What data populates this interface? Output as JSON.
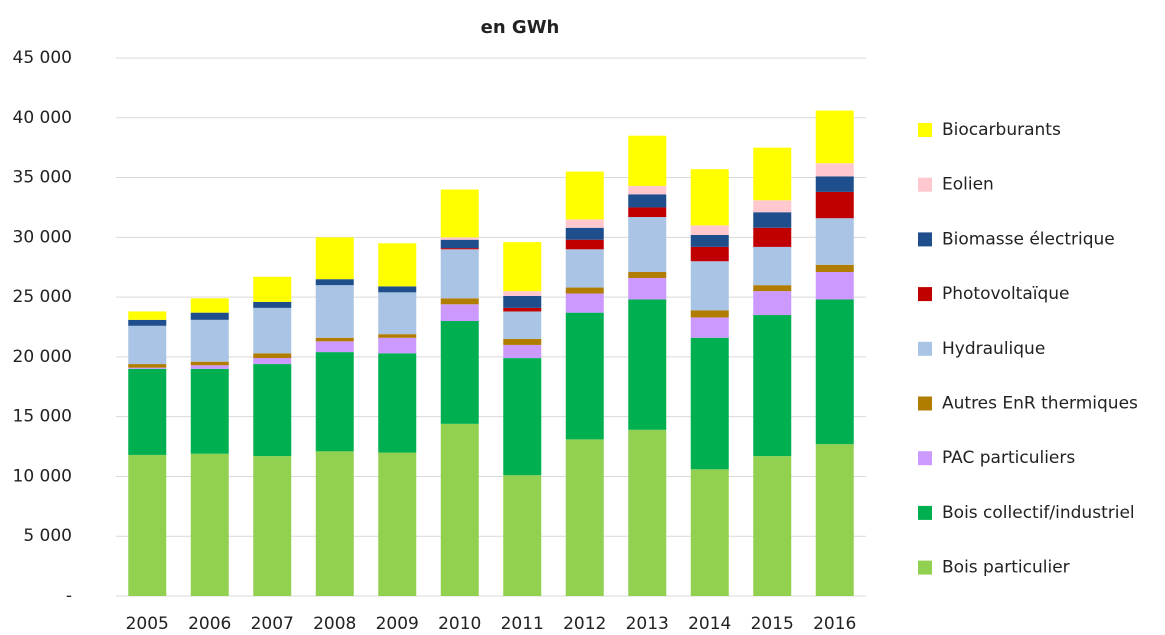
{
  "chart_data": {
    "type": "stacked_bar",
    "title": "en GWh",
    "categories": [
      "2005",
      "2006",
      "2007",
      "2008",
      "2009",
      "2010",
      "2011",
      "2012",
      "2013",
      "2014",
      "2015",
      "2016"
    ],
    "series": [
      {
        "name": "Bois particulier",
        "color": "#92d050",
        "values": [
          11800,
          11900,
          11700,
          12100,
          12000,
          14400,
          10100,
          13100,
          13900,
          10600,
          11700,
          12700
        ]
      },
      {
        "name": "Bois collectif/industriel",
        "color": "#00b050",
        "values": [
          7200,
          7100,
          7700,
          8300,
          8300,
          8600,
          9800,
          10600,
          10900,
          11000,
          11800,
          12100
        ]
      },
      {
        "name": "PAC particuliers",
        "color": "#cc99ff",
        "values": [
          100,
          300,
          500,
          900,
          1300,
          1400,
          1100,
          1600,
          1800,
          1700,
          2000,
          2300
        ]
      },
      {
        "name": "Autres EnR thermiques",
        "color": "#b07d00",
        "values": [
          300,
          300,
          400,
          300,
          300,
          500,
          500,
          500,
          500,
          600,
          500,
          600
        ]
      },
      {
        "name": "Hydraulique",
        "color": "#a9c4e4",
        "values": [
          3200,
          3500,
          3800,
          4400,
          3500,
          4100,
          2300,
          3200,
          4600,
          4100,
          3200,
          3900
        ]
      },
      {
        "name": "Photovoltaïque",
        "color": "#c00000",
        "values": [
          0,
          0,
          0,
          0,
          0,
          100,
          300,
          800,
          800,
          1200,
          1600,
          2200
        ]
      },
      {
        "name": "Biomasse électrique",
        "color": "#1f4e8c",
        "values": [
          500,
          600,
          500,
          500,
          500,
          700,
          1000,
          1000,
          1100,
          1000,
          1300,
          1300
        ]
      },
      {
        "name": "Eolien",
        "color": "#ffc7ce",
        "values": [
          0,
          0,
          0,
          0,
          0,
          200,
          400,
          700,
          700,
          800,
          1000,
          1100
        ]
      },
      {
        "name": "Biocarburants",
        "color": "#ffff00",
        "values": [
          700,
          1200,
          2100,
          3500,
          3600,
          4000,
          4100,
          4000,
          4200,
          4700,
          4400,
          4400
        ]
      }
    ],
    "ylim": [
      0,
      45000
    ],
    "yticks": [
      {
        "value": 0,
        "label": "-"
      },
      {
        "value": 5000,
        "label": "5 000"
      },
      {
        "value": 10000,
        "label": "10 000"
      },
      {
        "value": 15000,
        "label": "15 000"
      },
      {
        "value": 20000,
        "label": "20 000"
      },
      {
        "value": 25000,
        "label": "25 000"
      },
      {
        "value": 30000,
        "label": "30 000"
      },
      {
        "value": 35000,
        "label": "35 000"
      },
      {
        "value": 40000,
        "label": "40 000"
      },
      {
        "value": 45000,
        "label": "45 000"
      }
    ],
    "grid": true,
    "legend": "right"
  }
}
